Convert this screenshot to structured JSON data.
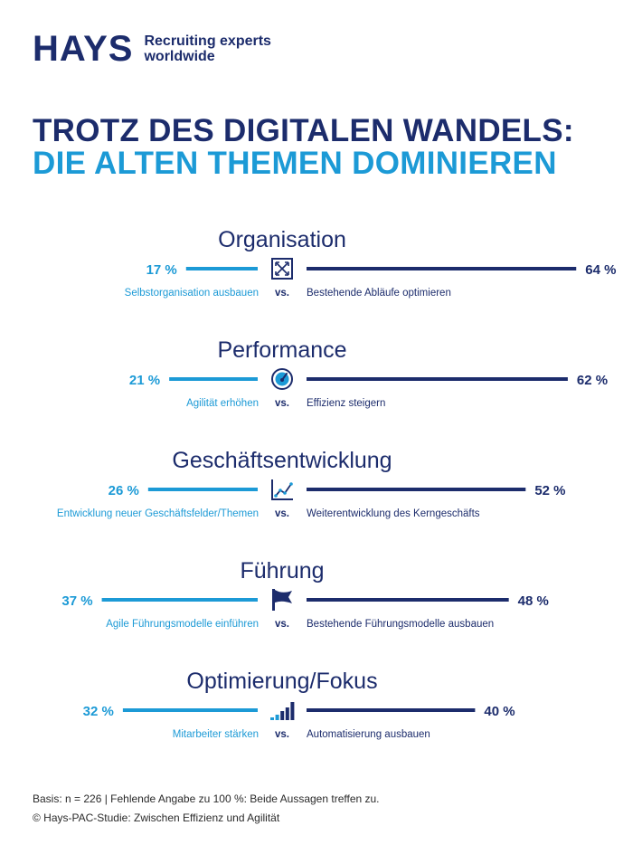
{
  "brand": {
    "logo": "HAYS",
    "tagline": "Recruiting experts worldwide",
    "colors": {
      "navy": "#1c2c6c",
      "cyan": "#1c9ad6"
    }
  },
  "headline": {
    "line1": "TROTZ DES DIGITALEN WANDELS:",
    "line2": "DIE ALTEN THEMEN DOMINIEREN"
  },
  "chart_data": {
    "type": "bar",
    "title": "TROTZ DES DIGITALEN WANDELS: DIE ALTEN THEMEN DOMINIEREN",
    "vs_label": "vs.",
    "value_unit": "%",
    "xlim": [
      0,
      70
    ],
    "categories": [
      {
        "name": "Organisation",
        "icon": "expand-arrows-icon",
        "left_label": "Selbstorganisation ausbauen",
        "left_value": 17,
        "right_label": "Bestehende Abläufe optimieren",
        "right_value": 64
      },
      {
        "name": "Performance",
        "icon": "speedometer-icon",
        "left_label": "Agilität erhöhen",
        "left_value": 21,
        "right_label": "Effizienz steigern",
        "right_value": 62
      },
      {
        "name": "Geschäftsentwicklung",
        "icon": "growth-chart-icon",
        "left_label": "Entwicklung neuer Geschäftsfelder/Themen",
        "left_value": 26,
        "right_label": "Weiterentwicklung des Kerngeschäfts",
        "right_value": 52
      },
      {
        "name": "Führung",
        "icon": "flag-icon",
        "left_label": "Agile Führungsmodelle einführen",
        "left_value": 37,
        "right_label": "Bestehende Führungsmodelle ausbauen",
        "right_value": 48
      },
      {
        "name": "Optimierung/Fokus",
        "icon": "signal-bars-icon",
        "left_label": "Mitarbeiter stärken",
        "left_value": 32,
        "right_label": "Automatisierung ausbauen",
        "right_value": 40
      }
    ]
  },
  "footer": {
    "basis": "Basis: n = 226  |  Fehlende Angabe zu 100 %: Beide Aussagen treffen zu.",
    "source": "© Hays-PAC-Studie: Zwischen Effizienz und Agilität"
  }
}
